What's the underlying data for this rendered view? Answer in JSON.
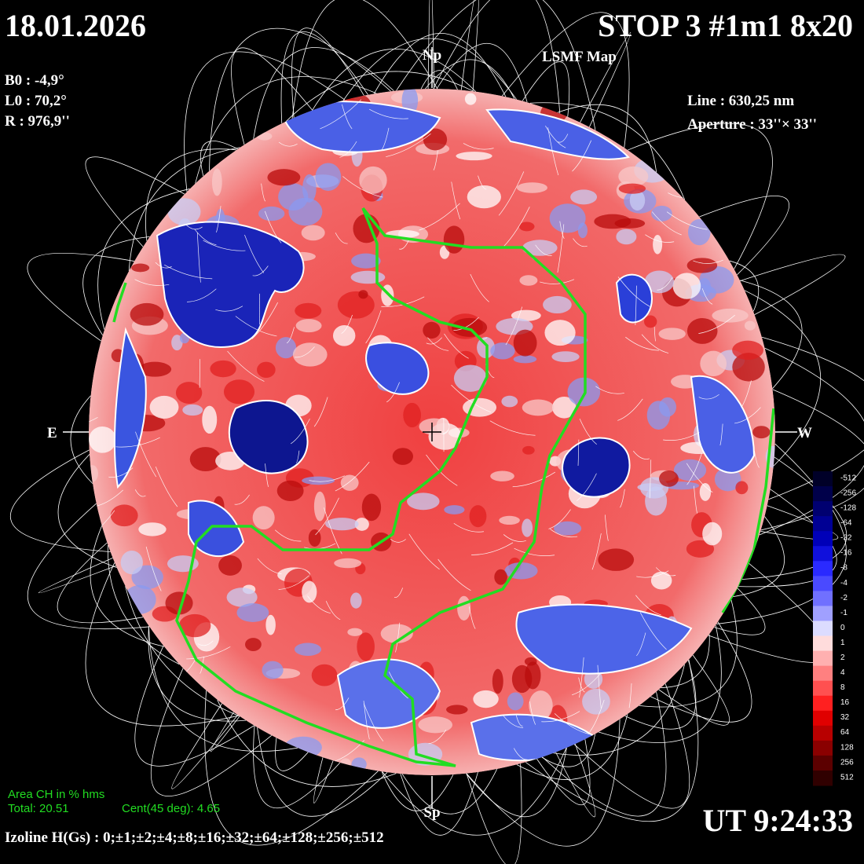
{
  "header": {
    "date": "18.01.2026",
    "title": "STOP 3 #1m1 8x20",
    "subtitle": "LSMF  Map"
  },
  "params": {
    "b0": "B0 : -4,9°",
    "l0": "L0 : 70,2°",
    "r": "R  : 976,9''",
    "line": "Line :  630,25 nm",
    "aperture": "Aperture : 33''× 33''"
  },
  "directions": {
    "north": "Np",
    "south": "Sp",
    "east": "E",
    "west": "W"
  },
  "coronal_hole": {
    "heading": "Area CH in % hms",
    "total": "Total: 20.51",
    "center": "Cent(45 deg): 4.65"
  },
  "time": "UT 9:24:33",
  "isolines": "Izoline H(Gs) : 0;±1;±2;±4;±8;±16;±32;±64;±128;±256;±512",
  "colorbar": {
    "labels": [
      "-512",
      "-256",
      "-128",
      "-64",
      "-32",
      "-16",
      "-8",
      "-4",
      "-2",
      "-1",
      "0",
      "1",
      "2",
      "4",
      "8",
      "16",
      "32",
      "64",
      "128",
      "256",
      "512"
    ]
  }
}
